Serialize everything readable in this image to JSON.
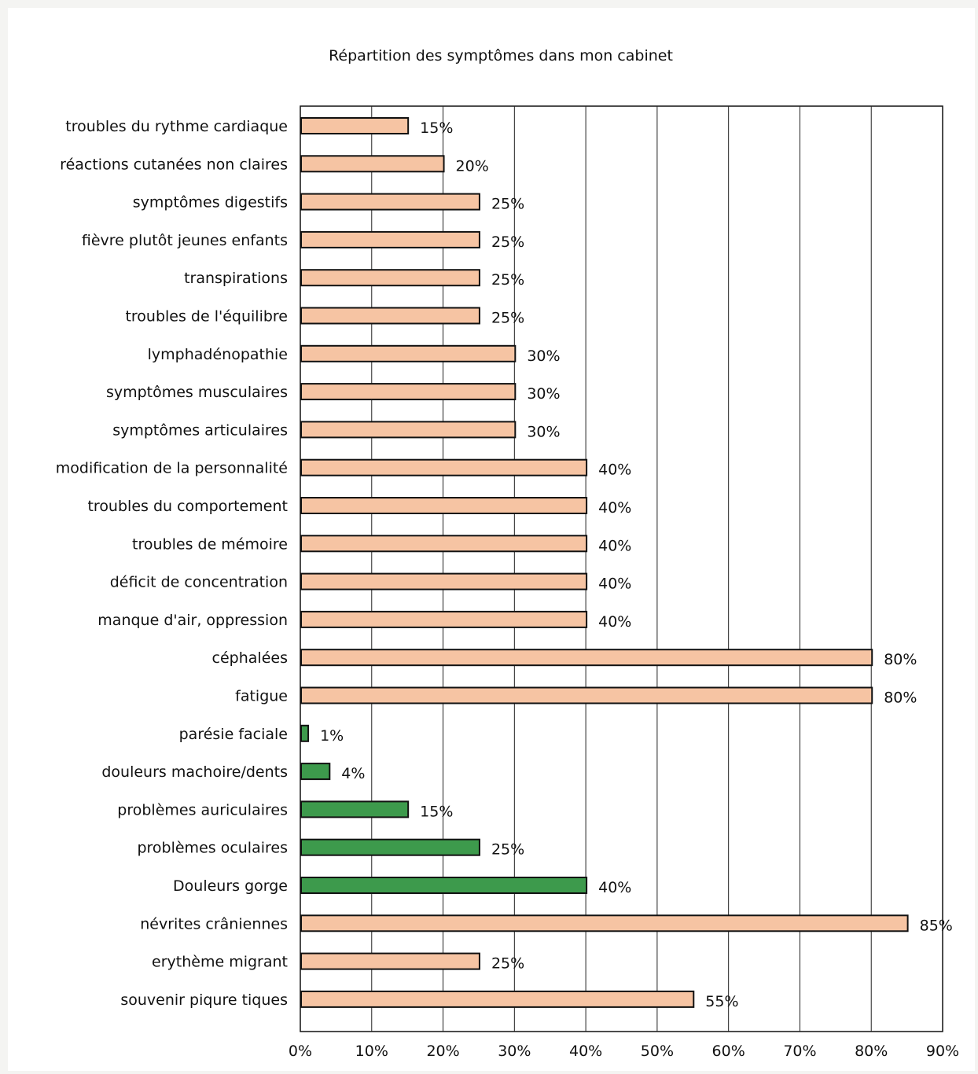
{
  "chart_data": {
    "type": "bar",
    "orientation": "horizontal",
    "title": "Répartition des symptômes dans mon cabinet",
    "xlabel": "",
    "ylabel": "",
    "xlim": [
      0,
      90
    ],
    "x_ticks": [
      "0%",
      "10%",
      "20%",
      "30%",
      "40%",
      "50%",
      "60%",
      "70%",
      "80%",
      "90%"
    ],
    "grid": "vertical",
    "colors": {
      "default": "#f6c4a3",
      "highlight": "#3d9a4c",
      "border": "#111111"
    },
    "bars": [
      {
        "category": "troubles du rythme cardiaque",
        "value": 15,
        "label": "15%",
        "color": "default"
      },
      {
        "category": "réactions cutanées non claires",
        "value": 20,
        "label": "20%",
        "color": "default"
      },
      {
        "category": "symptômes digestifs",
        "value": 25,
        "label": "25%",
        "color": "default"
      },
      {
        "category": "fièvre plutôt jeunes enfants",
        "value": 25,
        "label": "25%",
        "color": "default"
      },
      {
        "category": "transpirations",
        "value": 25,
        "label": "25%",
        "color": "default"
      },
      {
        "category": "troubles de l'équilibre",
        "value": 25,
        "label": "25%",
        "color": "default"
      },
      {
        "category": "lymphadénopathie",
        "value": 30,
        "label": "30%",
        "color": "default"
      },
      {
        "category": "symptômes musculaires",
        "value": 30,
        "label": "30%",
        "color": "default"
      },
      {
        "category": "symptômes articulaires",
        "value": 30,
        "label": "30%",
        "color": "default"
      },
      {
        "category": "modification de la personnalité",
        "value": 40,
        "label": "40%",
        "color": "default"
      },
      {
        "category": "troubles du comportement",
        "value": 40,
        "label": "40%",
        "color": "default"
      },
      {
        "category": "troubles de mémoire",
        "value": 40,
        "label": "40%",
        "color": "default"
      },
      {
        "category": "déficit de concentration",
        "value": 40,
        "label": "40%",
        "color": "default"
      },
      {
        "category": "manque d'air, oppression",
        "value": 40,
        "label": "40%",
        "color": "default"
      },
      {
        "category": "céphalées",
        "value": 80,
        "label": "80%",
        "color": "default"
      },
      {
        "category": "fatigue",
        "value": 80,
        "label": "80%",
        "color": "default"
      },
      {
        "category": "parésie faciale",
        "value": 1,
        "label": "1%",
        "color": "highlight"
      },
      {
        "category": "douleurs machoire/dents",
        "value": 4,
        "label": "4%",
        "color": "highlight"
      },
      {
        "category": "problèmes auriculaires",
        "value": 15,
        "label": "15%",
        "color": "highlight"
      },
      {
        "category": "problèmes oculaires",
        "value": 25,
        "label": "25%",
        "color": "highlight"
      },
      {
        "category": "Douleurs gorge",
        "value": 40,
        "label": "40%",
        "color": "highlight"
      },
      {
        "category": "névrites crâniennes",
        "value": 85,
        "label": "85%",
        "color": "default"
      },
      {
        "category": "erythème migrant",
        "value": 25,
        "label": "25%",
        "color": "default"
      },
      {
        "category": "souvenir piqure tiques",
        "value": 55,
        "label": "55%",
        "color": "default"
      }
    ]
  }
}
